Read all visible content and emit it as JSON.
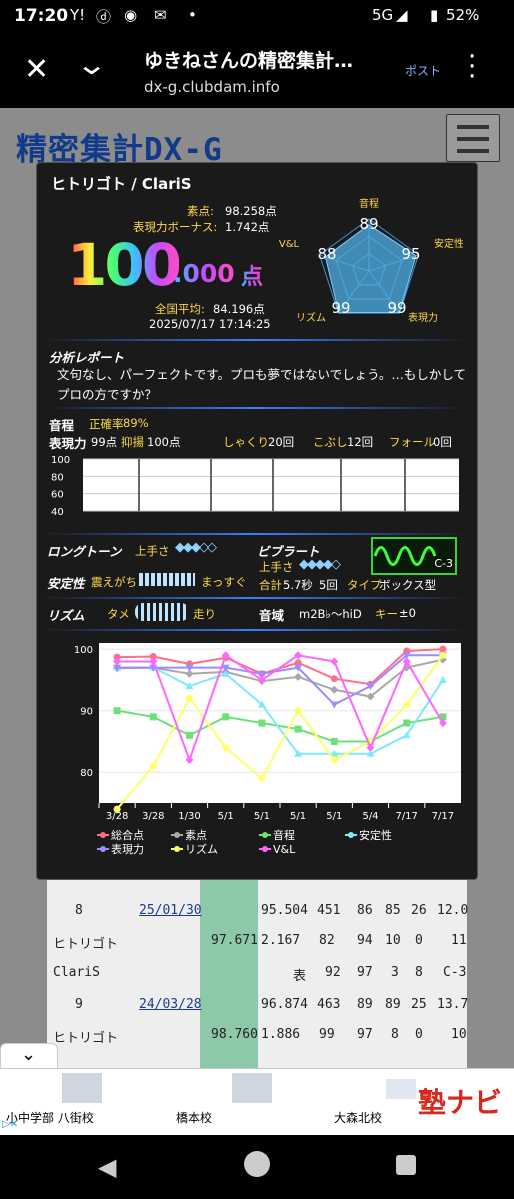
{
  "status": {
    "time": "17:20",
    "network": "5G",
    "battery": "52%"
  },
  "browser": {
    "title": "ゆきねさんの精密集計…",
    "url": "dx-g.clubdam.info",
    "post_label": "ポスト"
  },
  "site": {
    "logo": "精密集計DX-G"
  },
  "popup": {
    "song_title": "ヒトリゴト / ClariS",
    "raw_label": "素点:",
    "raw_value": "98.258点",
    "bonus_label": "表現力ボーナス:",
    "bonus_value": "1.742点",
    "score_int": "100",
    "score_dec": ".000",
    "score_unit": "点",
    "avg_label": "全国平均:",
    "avg_value": "84.196点",
    "datetime": "2025/07/17  17:14:25",
    "radar": {
      "labels": {
        "pitch": "音程",
        "stability": "安定性",
        "expression": "表現力",
        "rhythm": "リズム",
        "vl": "V&L"
      },
      "values": {
        "pitch": 89,
        "stability": 95,
        "expression": 99,
        "rhythm": 99,
        "vl": 88
      }
    },
    "analysis": {
      "heading": "分析レポート",
      "text": "文句なし、パーフェクトです。プロも夢ではないでしょう。…もしかしてプロの方ですか？"
    },
    "pitch": {
      "label": "音程",
      "accuracy_label": "正確率",
      "accuracy_value": "89%"
    },
    "expression": {
      "label": "表現力",
      "value": "99点",
      "yokuyo_label": "抑揚",
      "yokuyo_value": "100点",
      "shakuri_label": "しゃくり",
      "shakuri_value": "20回",
      "kobushi_label": "こぶし",
      "kobushi_value": "12回",
      "fall_label": "フォール",
      "fall_value": "0回"
    },
    "mini_chart_ticks": [
      "100",
      "80",
      "60",
      "40"
    ],
    "longtone": {
      "label": "ロングトーン",
      "skill_label": "上手さ"
    },
    "vibrato": {
      "label": "ビブラート",
      "skill_label": "上手さ",
      "total_label": "合計",
      "total_value": "5.7秒",
      "count": "5回",
      "type_label": "タイプ",
      "type_value": "ボックス型",
      "badge": "C-3"
    },
    "stability": {
      "label": "安定性",
      "left": "震えがち",
      "right": "まっすぐ"
    },
    "rhythm": {
      "label": "リズム",
      "left": "タメ",
      "right": "走り"
    },
    "range": {
      "label": "音域",
      "value": "m2B♭～hiD",
      "key_label": "キー",
      "key_value": "±0"
    }
  },
  "chart_data": {
    "type": "line",
    "categories": [
      "3/28",
      "3/28",
      "1/30",
      "5/1",
      "5/1",
      "5/1",
      "5/1",
      "5/4",
      "7/17",
      "7/17"
    ],
    "ylim": [
      75,
      101
    ],
    "yticks": [
      100,
      90,
      80
    ],
    "series": [
      {
        "name": "総合点",
        "color": "#ff6f8a",
        "marker": "circle",
        "values": [
          98.7,
          98.8,
          97.6,
          98.6,
          96.0,
          97.8,
          95.2,
          94.3,
          99.7,
          100.0
        ]
      },
      {
        "name": "素点",
        "color": "#a8a8a8",
        "marker": "diamond",
        "values": [
          96.9,
          97.0,
          96.0,
          96.3,
          94.8,
          95.5,
          93.4,
          92.3,
          97.0,
          98.3
        ]
      },
      {
        "name": "音程",
        "color": "#6ee07a",
        "marker": "square",
        "values": [
          90,
          89,
          86,
          89,
          88,
          87,
          85,
          85,
          88,
          89
        ]
      },
      {
        "name": "安定性",
        "color": "#7fe8ff",
        "marker": "triangle",
        "values": [
          97,
          97,
          94,
          96,
          91,
          83,
          83,
          83,
          86,
          95
        ]
      },
      {
        "name": "表現力",
        "color": "#9b8cff",
        "marker": "tri-down",
        "values": [
          97,
          97,
          97,
          97,
          96,
          97,
          91,
          94,
          99,
          99
        ]
      },
      {
        "name": "リズム",
        "color": "#ffff66",
        "marker": "circle",
        "values": [
          74,
          81,
          92,
          84,
          79,
          90,
          82,
          85,
          91,
          99
        ]
      },
      {
        "name": "V&L",
        "color": "#ff66ff",
        "marker": "diamond",
        "values": [
          98,
          98,
          82,
          99,
          95,
          99,
          98,
          84,
          98,
          88
        ]
      }
    ]
  },
  "table": {
    "row1": {
      "no": "8",
      "date": "25/01/30",
      "score": "95.504",
      "c1": "451",
      "c2": "86",
      "c3": "85",
      "c4": "26",
      "c5": "12.0"
    },
    "row2": {
      "title": "ヒトリゴト",
      "green": "97.671",
      "bonus": "2.167",
      "c1": "82",
      "c2": "94",
      "c3": "10",
      "c4": "0",
      "c5": "11"
    },
    "row3": {
      "artist": "ClariS",
      "kind": "表",
      "c1": "92",
      "c2": "97",
      "c3": "3",
      "c4": "8",
      "c5": "C-3"
    },
    "row4": {
      "no": "9",
      "date": "24/03/28",
      "score": "96.874",
      "c1": "463",
      "c2": "89",
      "c3": "89",
      "c4": "25",
      "c5": "13.7"
    },
    "row5": {
      "title": "ヒトリゴト",
      "green": "98.760",
      "bonus": "1.886",
      "c1": "99",
      "c2": "97",
      "c3": "8",
      "c4": "0",
      "c5": "10"
    }
  },
  "ad": {
    "item1": "小中学部 八街校",
    "item2": "橋本校",
    "item3": "大森北校",
    "brand": "塾ナビ"
  }
}
